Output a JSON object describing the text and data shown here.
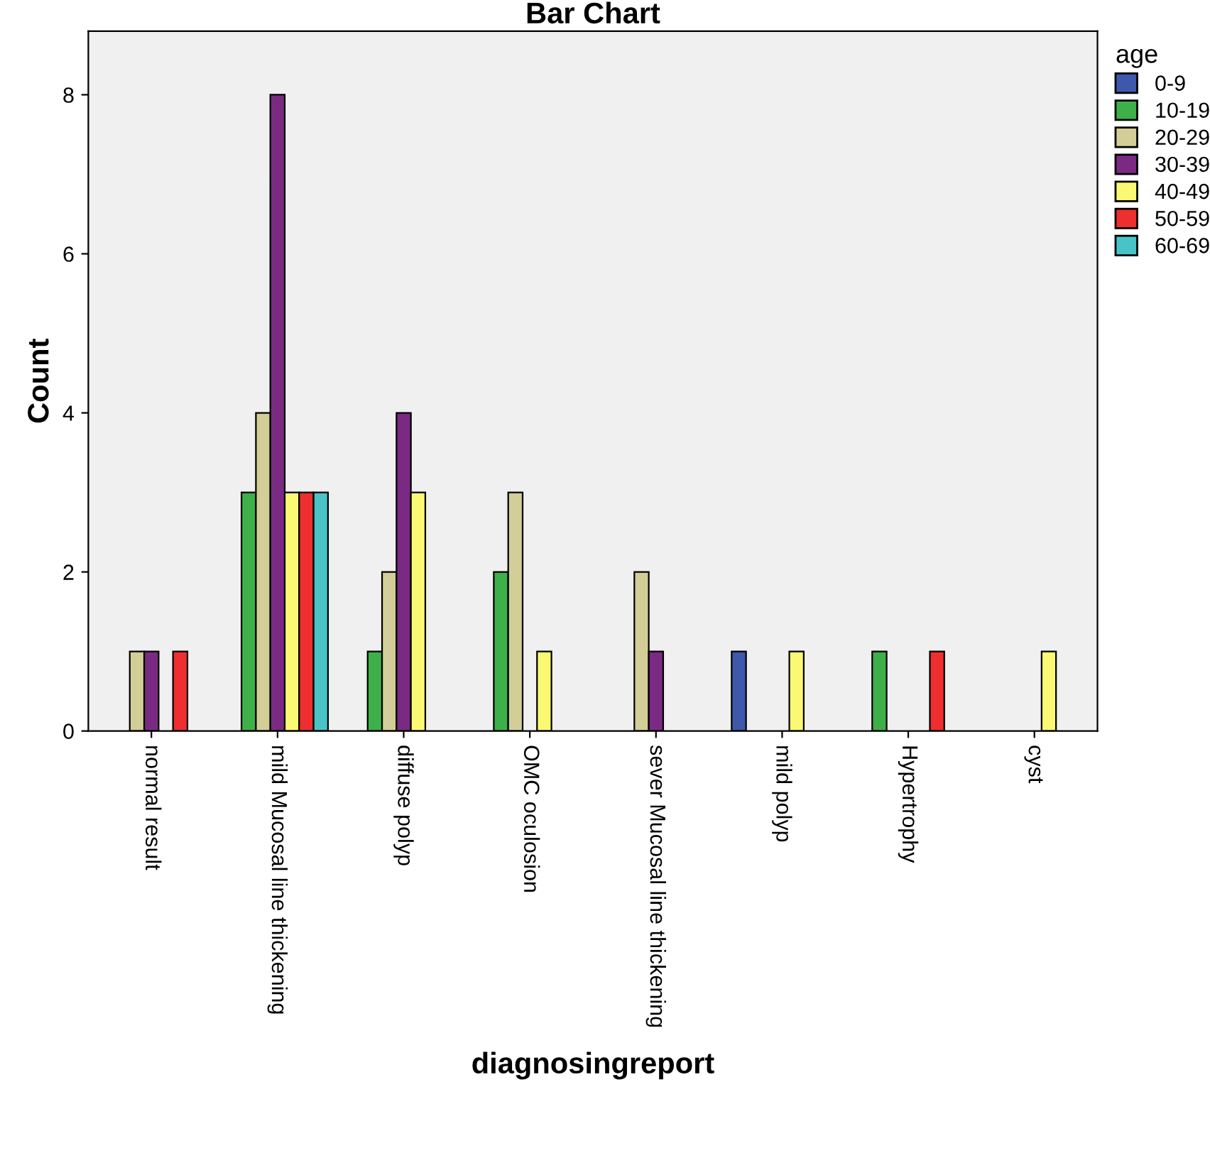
{
  "chart_data": {
    "type": "bar",
    "title": "Bar Chart",
    "xlabel": "diagnosingreport",
    "ylabel": "Count",
    "legend_title": "age",
    "categories": [
      "normal result",
      "mild Mucosal line thickening",
      "diffuse polyp",
      "OMC oculosion",
      "sever Mucosal line thickening",
      "mild polyp",
      "Hypertrophy",
      "cyst"
    ],
    "series": [
      {
        "name": "0-9",
        "color": "#3e58ac",
        "values": [
          null,
          null,
          null,
          null,
          null,
          1,
          null,
          null
        ]
      },
      {
        "name": "10-19",
        "color": "#3eb049",
        "values": [
          null,
          3,
          1,
          2,
          null,
          null,
          1,
          null
        ]
      },
      {
        "name": "20-29",
        "color": "#d3ce97",
        "values": [
          1,
          4,
          2,
          3,
          2,
          null,
          null,
          null
        ]
      },
      {
        "name": "30-39",
        "color": "#7b2a83",
        "values": [
          1,
          8,
          4,
          null,
          1,
          null,
          null,
          null
        ]
      },
      {
        "name": "40-49",
        "color": "#fbf873",
        "values": [
          null,
          3,
          3,
          1,
          null,
          1,
          null,
          1
        ]
      },
      {
        "name": "50-59",
        "color": "#ee2e2f",
        "values": [
          1,
          3,
          null,
          null,
          null,
          null,
          1,
          null
        ]
      },
      {
        "name": "60-69",
        "color": "#48c4c6",
        "values": [
          null,
          3,
          null,
          null,
          null,
          null,
          null,
          null
        ]
      }
    ],
    "ylim": [
      0,
      8.8
    ],
    "yticks": [
      0,
      2,
      4,
      6,
      8
    ],
    "grid": false,
    "legend": "right"
  }
}
